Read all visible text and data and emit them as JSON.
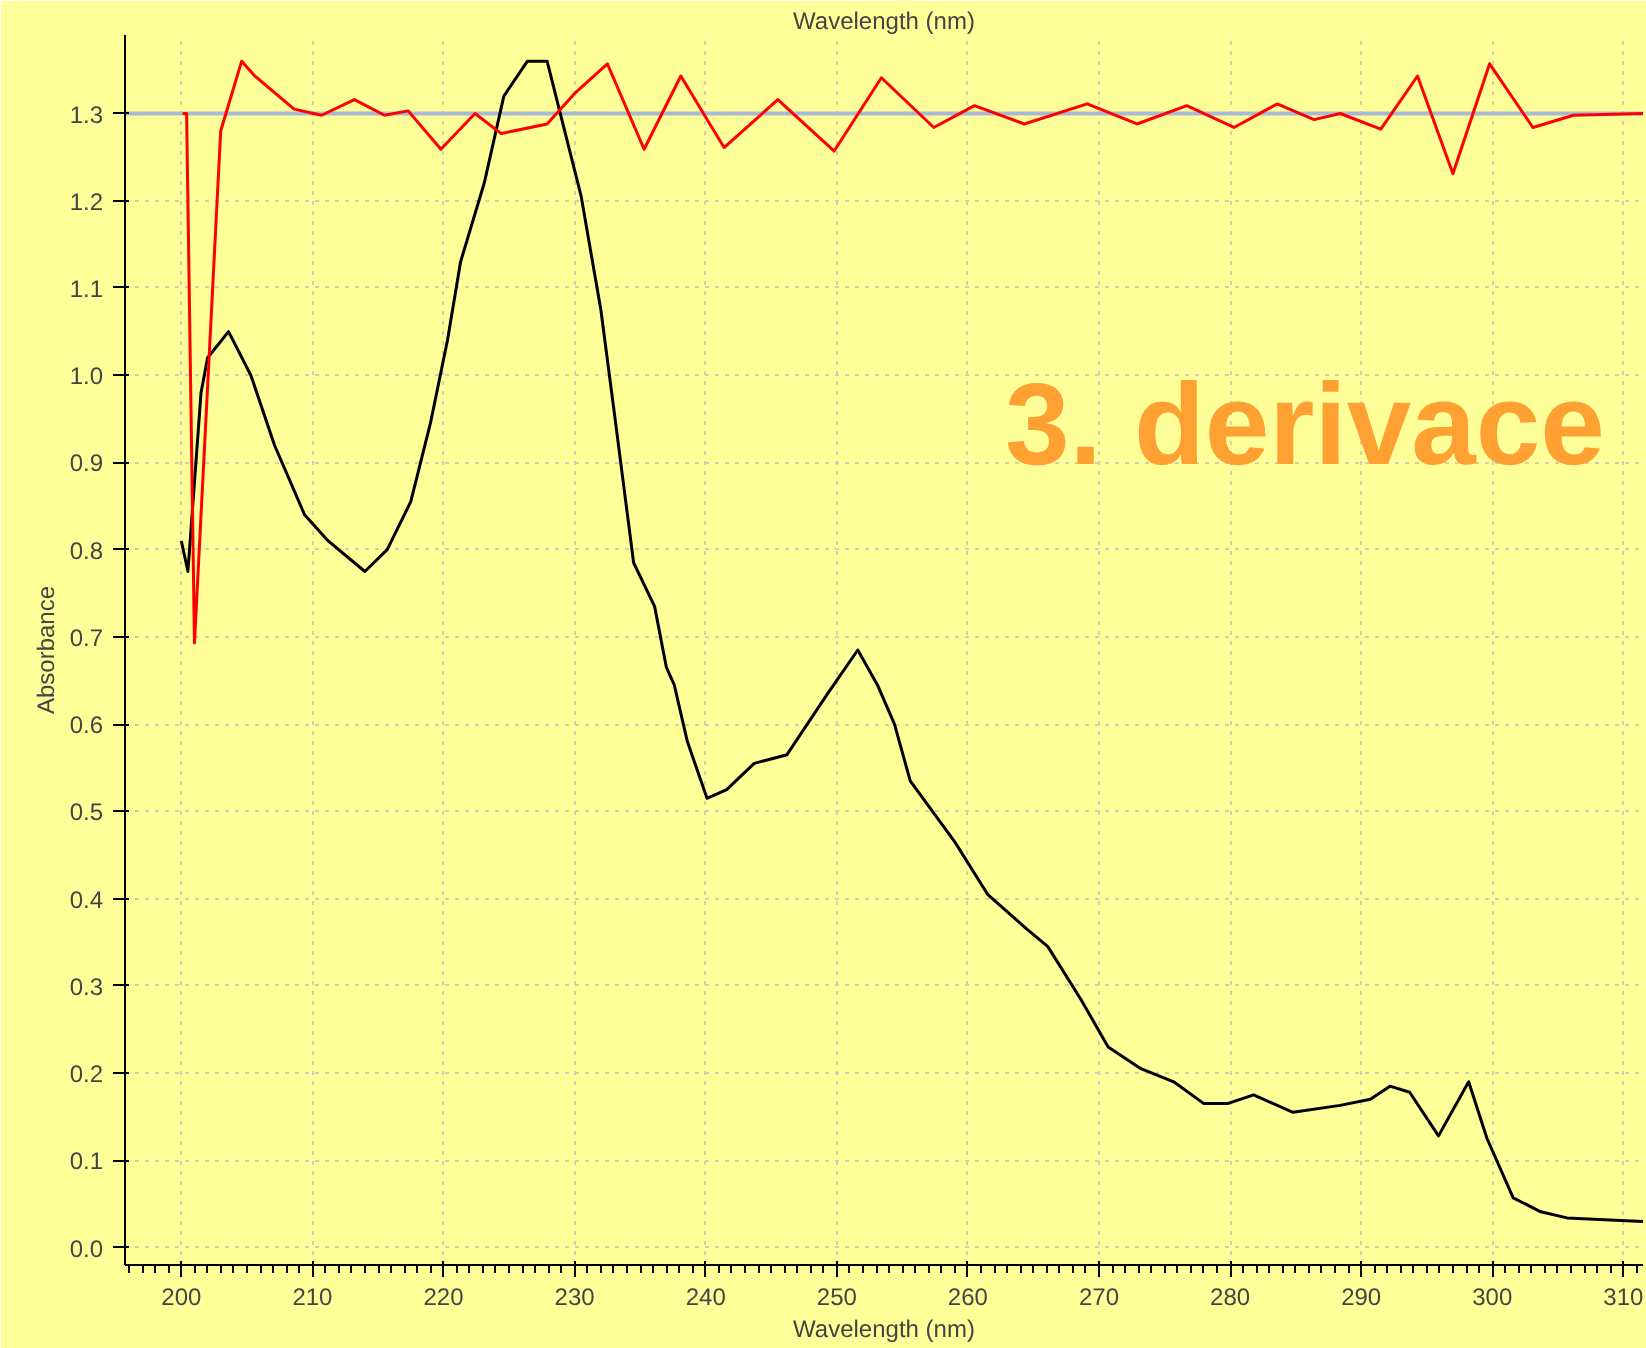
{
  "chart_data": {
    "type": "line",
    "xlabel": "Wavelength (nm)",
    "x2label": "Wavelength (nm)",
    "ylabel": "Absorbance",
    "annotations": [
      "3. derivace"
    ],
    "xlim": [
      195.7,
      311.5
    ],
    "xticks": [
      200,
      210,
      220,
      230,
      240,
      250,
      260,
      270,
      280,
      290,
      300,
      310
    ],
    "ylim": [
      -0.02,
      1.39
    ],
    "yticks": [
      {
        "value": 0,
        "label": "0.0"
      },
      0.1,
      0.2,
      0.3,
      0.4,
      0.5,
      0.6,
      0.7,
      0.8,
      0.9,
      {
        "value": 1,
        "label": "1.0"
      },
      1.1,
      1.2,
      1.3
    ],
    "grid": true,
    "marker": "none",
    "line_style": "solid",
    "ref_lines": [
      {
        "axis": "y",
        "value": 1.3,
        "label": null,
        "color": "#a8b8d8"
      }
    ],
    "series": [
      {
        "color": "#000000",
        "x": [
          200.0,
          200.5,
          201.5,
          202.0,
          203.6,
          205.3,
          207.1,
          209.4,
          211.2,
          214.0,
          215.7,
          217.5,
          219.0,
          220.3,
          221.3,
          223.1,
          224.6,
          226.4,
          227.9,
          230.5,
          232.0,
          233.0,
          234.5,
          236.1,
          237.0,
          237.6,
          238.6,
          240.1,
          241.6,
          243.7,
          246.2,
          249.3,
          251.6,
          253.1,
          254.4,
          255.6,
          259.0,
          261.5,
          264.5,
          266.1,
          268.6,
          270.7,
          273.2,
          275.7,
          278.0,
          279.8,
          281.8,
          284.8,
          288.4,
          290.7,
          292.2,
          293.7,
          295.9,
          298.2,
          299.6,
          301.6,
          303.7,
          305.7,
          311.5
        ],
        "values": [
          0.81,
          0.775,
          0.98,
          1.02,
          1.05,
          1.0,
          0.92,
          0.84,
          0.81,
          0.775,
          0.8,
          0.855,
          0.945,
          1.04,
          1.13,
          1.22,
          1.32,
          1.36,
          1.36,
          1.205,
          1.075,
          0.96,
          0.785,
          0.735,
          0.665,
          0.645,
          0.58,
          0.515,
          0.525,
          0.555,
          0.565,
          0.635,
          0.685,
          0.645,
          0.6,
          0.535,
          0.465,
          0.405,
          0.365,
          0.345,
          0.285,
          0.23,
          0.205,
          0.19,
          0.165,
          0.165,
          0.175,
          0.155,
          0.163,
          0.17,
          0.185,
          0.178,
          0.128,
          0.19,
          0.125,
          0.057,
          0.041,
          0.034,
          0.03
        ]
      },
      {
        "color": "#ff0000",
        "x": [
          200.1,
          200.4,
          201.0,
          203.0,
          204.6,
          205.6,
          208.6,
          210.7,
          213.2,
          215.5,
          217.3,
          219.8,
          222.4,
          224.4,
          227.9,
          230.0,
          232.5,
          235.3,
          238.1,
          241.4,
          245.5,
          249.8,
          253.4,
          257.4,
          260.5,
          264.3,
          269.1,
          272.9,
          276.7,
          280.3,
          283.6,
          286.4,
          288.4,
          291.5,
          294.3,
          297.0,
          299.8,
          303.1,
          306.2,
          311.5
        ],
        "values": [
          1.3,
          1.3,
          0.693,
          1.28,
          1.36,
          1.343,
          1.305,
          1.298,
          1.316,
          1.298,
          1.303,
          1.259,
          1.3,
          1.277,
          1.288,
          1.323,
          1.357,
          1.259,
          1.343,
          1.261,
          1.316,
          1.257,
          1.341,
          1.284,
          1.309,
          1.288,
          1.311,
          1.288,
          1.309,
          1.284,
          1.311,
          1.293,
          1.3,
          1.282,
          1.343,
          1.231,
          1.357,
          1.284,
          1.298,
          1.3
        ]
      }
    ]
  }
}
